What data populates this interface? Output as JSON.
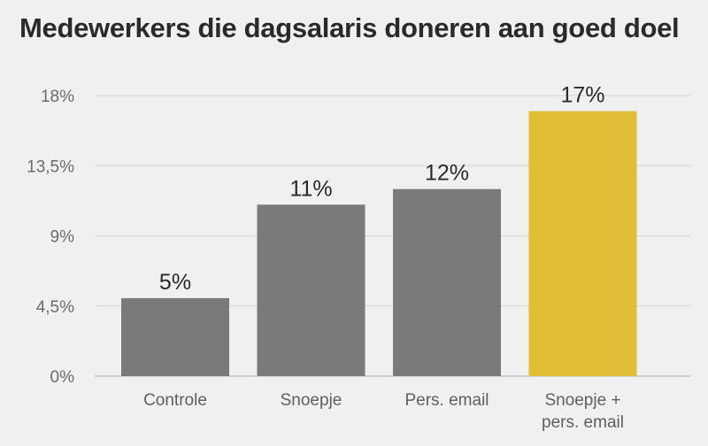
{
  "chart_data": {
    "type": "bar",
    "title": "Medewerkers die dagsalaris doneren aan goed doel",
    "categories": [
      [
        "Controle"
      ],
      [
        "Snoepje"
      ],
      [
        "Pers. email"
      ],
      [
        "Snoepje +",
        "pers. email"
      ]
    ],
    "values": [
      5,
      11,
      12,
      17
    ],
    "data_labels": [
      "5%",
      "11%",
      "12%",
      "17%"
    ],
    "ylim": [
      0,
      18
    ],
    "yticks": [
      0,
      4.5,
      9,
      13.5,
      18
    ],
    "ytick_labels": [
      "0%",
      "4,5%",
      "9%",
      "13,5%",
      "18%"
    ],
    "grid": true,
    "colors": {
      "default_bar": "#7a7a7a",
      "highlight_bar": "#e2bd36",
      "background": "#f0f0f0"
    },
    "highlight_index": 3
  }
}
